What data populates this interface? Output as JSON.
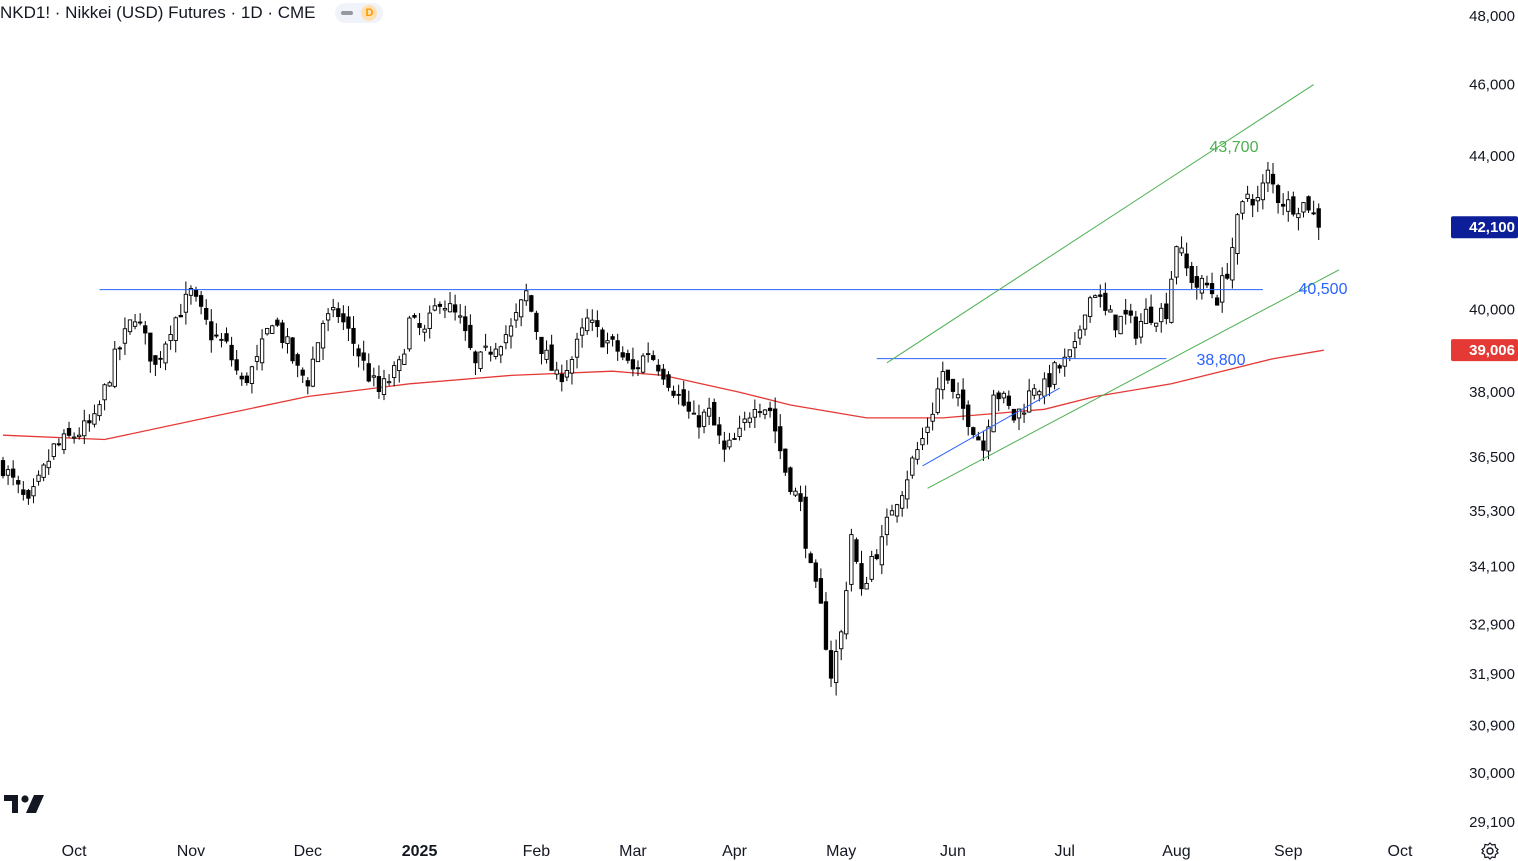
{
  "header": {
    "title": "NKD1! · Nikkei (USD) Futures · 1D · CME",
    "interval_badge": "D"
  },
  "colors": {
    "bull_candle": "#ffffff",
    "bear_candle": "#000000",
    "ma_line": "#e53935",
    "channel": "#4caf50",
    "horizontal_levels": "#2962ff",
    "last_price_bg": "#0d1e99",
    "ma_label_bg": "#e53935"
  },
  "icons": {
    "logo": "tradingview-logo-icon",
    "settings": "settings-gear-icon"
  },
  "chart_data": {
    "type": "candlestick",
    "symbol": "NKD1!",
    "y_scale": "log",
    "y_ticks": [
      48000,
      46000,
      44000,
      42000,
      40000,
      38000,
      36500,
      35300,
      34100,
      32900,
      31900,
      30900,
      30000,
      29100
    ],
    "y_tick_labels": [
      "48,000",
      "46,000",
      "44,000",
      "",
      "40,000",
      "38,000",
      "36,500",
      "35,300",
      "34,100",
      "32,900",
      "31,900",
      "30,900",
      "30,000",
      "29,100"
    ],
    "x_labels": [
      "Oct",
      "Nov",
      "Dec",
      "2025",
      "Feb",
      "Mar",
      "Apr",
      "May",
      "Jun",
      "Jul",
      "Aug",
      "Sep",
      "Oct"
    ],
    "last_price": {
      "value": 42100,
      "label": "42,100"
    },
    "ma_label": {
      "value": 39006,
      "label": "39,006"
    },
    "annotations": [
      {
        "text": "43,700",
        "color": "#4caf50"
      },
      {
        "text": "40,500",
        "color": "#2962ff"
      },
      {
        "text": "38,800",
        "color": "#2962ff"
      }
    ],
    "price_path": [
      [
        0,
        36300
      ],
      [
        5,
        35400
      ],
      [
        10,
        36700
      ],
      [
        18,
        37300
      ],
      [
        22,
        38800
      ],
      [
        26,
        39900
      ],
      [
        30,
        38600
      ],
      [
        33,
        39600
      ],
      [
        37,
        40400
      ],
      [
        41,
        39400
      ],
      [
        44,
        39100
      ],
      [
        47,
        38200
      ],
      [
        50,
        38700
      ],
      [
        53,
        39800
      ],
      [
        56,
        39100
      ],
      [
        58,
        38500
      ],
      [
        60,
        38300
      ],
      [
        63,
        39700
      ],
      [
        66,
        39900
      ],
      [
        69,
        39200
      ],
      [
        72,
        38400
      ],
      [
        74,
        38000
      ],
      [
        78,
        38600
      ],
      [
        80,
        39700
      ],
      [
        83,
        39400
      ],
      [
        86,
        40300
      ],
      [
        90,
        39700
      ],
      [
        93,
        38600
      ],
      [
        97,
        39200
      ],
      [
        100,
        39500
      ],
      [
        103,
        40400
      ],
      [
        106,
        39100
      ],
      [
        109,
        38300
      ],
      [
        112,
        38800
      ],
      [
        115,
        39700
      ],
      [
        118,
        39300
      ],
      [
        121,
        39000
      ],
      [
        124,
        38500
      ],
      [
        127,
        39000
      ],
      [
        130,
        38500
      ],
      [
        133,
        37900
      ],
      [
        136,
        37300
      ],
      [
        139,
        37500
      ],
      [
        142,
        36600
      ],
      [
        145,
        37000
      ],
      [
        148,
        37800
      ],
      [
        151,
        37600
      ],
      [
        154,
        36200
      ],
      [
        157,
        35400
      ],
      [
        159,
        34000
      ],
      [
        161,
        33200
      ],
      [
        163,
        31900
      ],
      [
        165,
        32700
      ],
      [
        167,
        34800
      ],
      [
        169,
        33500
      ],
      [
        171,
        34300
      ],
      [
        173,
        34600
      ],
      [
        175,
        35400
      ],
      [
        177,
        35800
      ],
      [
        179,
        36400
      ],
      [
        181,
        36900
      ],
      [
        183,
        37600
      ],
      [
        185,
        38500
      ],
      [
        187,
        37900
      ],
      [
        189,
        37600
      ],
      [
        191,
        37200
      ],
      [
        193,
        36700
      ],
      [
        195,
        38100
      ],
      [
        197,
        37800
      ],
      [
        199,
        37400
      ],
      [
        201,
        37700
      ],
      [
        203,
        38200
      ],
      [
        205,
        38100
      ],
      [
        207,
        38500
      ],
      [
        209,
        38700
      ],
      [
        211,
        39000
      ],
      [
        213,
        40100
      ],
      [
        215,
        40500
      ],
      [
        217,
        39900
      ],
      [
        219,
        39700
      ],
      [
        221,
        39800
      ],
      [
        223,
        39500
      ],
      [
        225,
        39900
      ],
      [
        227,
        39900
      ],
      [
        229,
        40000
      ],
      [
        231,
        41700
      ],
      [
        233,
        41000
      ],
      [
        235,
        40600
      ],
      [
        237,
        40600
      ],
      [
        239,
        40300
      ],
      [
        241,
        41000
      ],
      [
        243,
        42200
      ],
      [
        245,
        43000
      ],
      [
        247,
        42800
      ],
      [
        249,
        43500
      ],
      [
        251,
        42900
      ],
      [
        253,
        42700
      ],
      [
        255,
        42700
      ],
      [
        257,
        42700
      ],
      [
        259,
        42100
      ]
    ],
    "ma200_path": [
      [
        0,
        37000
      ],
      [
        20,
        36900
      ],
      [
        40,
        37400
      ],
      [
        60,
        37900
      ],
      [
        80,
        38200
      ],
      [
        100,
        38400
      ],
      [
        120,
        38500
      ],
      [
        130,
        38400
      ],
      [
        145,
        38000
      ],
      [
        155,
        37700
      ],
      [
        170,
        37400
      ],
      [
        185,
        37400
      ],
      [
        195,
        37500
      ],
      [
        205,
        37600
      ],
      [
        215,
        37900
      ],
      [
        230,
        38200
      ],
      [
        240,
        38500
      ],
      [
        250,
        38800
      ],
      [
        260,
        39006
      ]
    ],
    "date_ticks": [
      {
        "label": "Oct",
        "index": 14
      },
      {
        "label": "Nov",
        "index": 37
      },
      {
        "label": "Dec",
        "index": 60
      },
      {
        "label": "2025",
        "index": 82
      },
      {
        "label": "Feb",
        "index": 105
      },
      {
        "label": "Mar",
        "index": 124
      },
      {
        "label": "Apr",
        "index": 144
      },
      {
        "label": "May",
        "index": 165
      },
      {
        "label": "Jun",
        "index": 187
      },
      {
        "label": "Jul",
        "index": 209
      },
      {
        "label": "Aug",
        "index": 231
      },
      {
        "label": "Sep",
        "index": 253
      },
      {
        "label": "Oct",
        "index": 275
      }
    ],
    "lines": [
      {
        "name": "resistance",
        "from": [
          19,
          40500
        ],
        "to": [
          248,
          40500
        ],
        "color": "#2962ff"
      },
      {
        "name": "breakout",
        "from": [
          172,
          38800
        ],
        "to": [
          229,
          38800
        ],
        "color": "#2962ff"
      },
      {
        "name": "wedge-support",
        "from": [
          181,
          36300
        ],
        "to": [
          208,
          38100
        ],
        "color": "#2962ff"
      },
      {
        "name": "channel-top",
        "from": [
          174,
          38700
        ],
        "to": [
          258,
          46000
        ],
        "color": "#4caf50"
      },
      {
        "name": "channel-bottom",
        "from": [
          182,
          35800
        ],
        "to": [
          263,
          41000
        ],
        "color": "#4caf50"
      }
    ]
  }
}
